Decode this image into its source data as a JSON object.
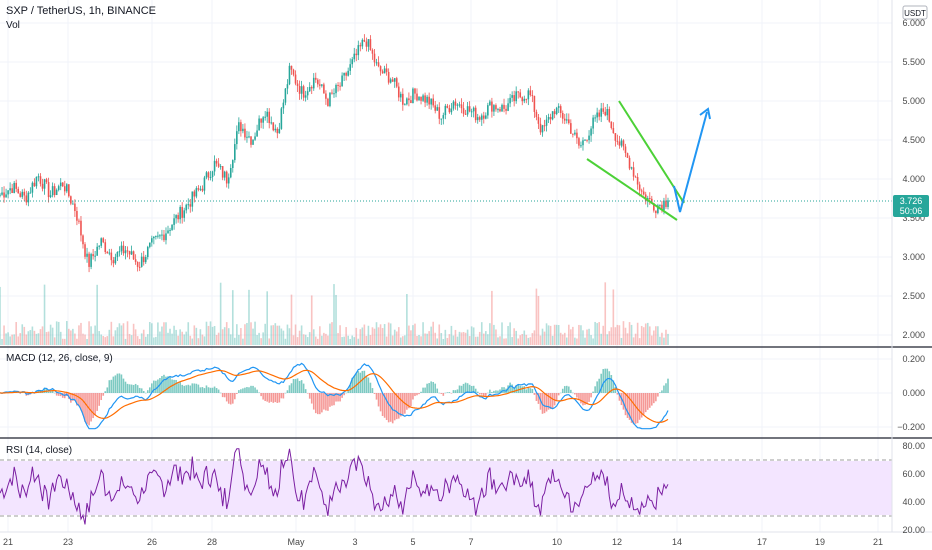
{
  "header": {
    "symbol_line": "SXP / TetherUS, 1h, BINANCE",
    "volume_label": "Vol",
    "currency_badge": "USDT"
  },
  "price_tag": {
    "price": "3.726",
    "countdown": "50:06"
  },
  "price_axis": {
    "ticks": [
      "6.000",
      "5.500",
      "5.000",
      "4.500",
      "4.000",
      "3.500",
      "3.000",
      "2.500",
      "2.000"
    ],
    "values": [
      6.0,
      5.5,
      5.0,
      4.5,
      4.0,
      3.5,
      3.0,
      2.5,
      2.0
    ]
  },
  "time_axis": {
    "labels": [
      "21",
      "23",
      "26",
      "28",
      "May",
      "3",
      "5",
      "7",
      "10",
      "12",
      "14",
      "17",
      "19",
      "21"
    ]
  },
  "macd_pane": {
    "title": "MACD (12, 26, close, 9)",
    "ticks": [
      "0.200",
      "0.000",
      "−0.200"
    ],
    "values": [
      0.2,
      0.0,
      -0.2
    ]
  },
  "rsi_pane": {
    "title": "RSI (14, close)",
    "ticks": [
      "80.00",
      "60.00",
      "40.00",
      "20.00"
    ],
    "values": [
      80,
      60,
      40,
      20
    ],
    "band": [
      30,
      70
    ]
  },
  "colors": {
    "up": "#26a69a",
    "down": "#ef5350",
    "macd_line": "#2196f3",
    "signal_line": "#ff6d00",
    "rsi_line": "#7b1fa2",
    "rsi_band": "#f3e5ff",
    "wedge": "#4cd137",
    "arrow": "#2196f3",
    "tag": "#26a69a"
  },
  "chart_data": {
    "type": "candlestick",
    "title": "SXP / TetherUS, 1h, BINANCE",
    "ylim": [
      1.9,
      6.15
    ],
    "x_labels": [
      "21",
      "23",
      "26",
      "28",
      "May",
      "3",
      "5",
      "7",
      "10",
      "12",
      "14",
      "17",
      "19",
      "21"
    ],
    "price_path": [
      3.8,
      3.9,
      3.75,
      4.05,
      3.8,
      3.95,
      3.6,
      2.9,
      3.2,
      3.0,
      3.1,
      2.9,
      3.15,
      3.3,
      3.5,
      3.7,
      3.9,
      4.2,
      4.0,
      4.7,
      4.5,
      4.9,
      4.6,
      5.4,
      5.1,
      5.3,
      5.0,
      5.2,
      5.5,
      5.8,
      5.4,
      5.3,
      5.0,
      5.1,
      5.0,
      4.8,
      5.0,
      4.9,
      4.8,
      4.95,
      4.9,
      5.05,
      5.1,
      4.6,
      4.9,
      4.75,
      4.4,
      4.7,
      4.9,
      4.5,
      4.2,
      3.8,
      3.65,
      3.726
    ],
    "last_price": 3.726,
    "annotations": [
      "falling wedge",
      "breakout arrow"
    ]
  }
}
